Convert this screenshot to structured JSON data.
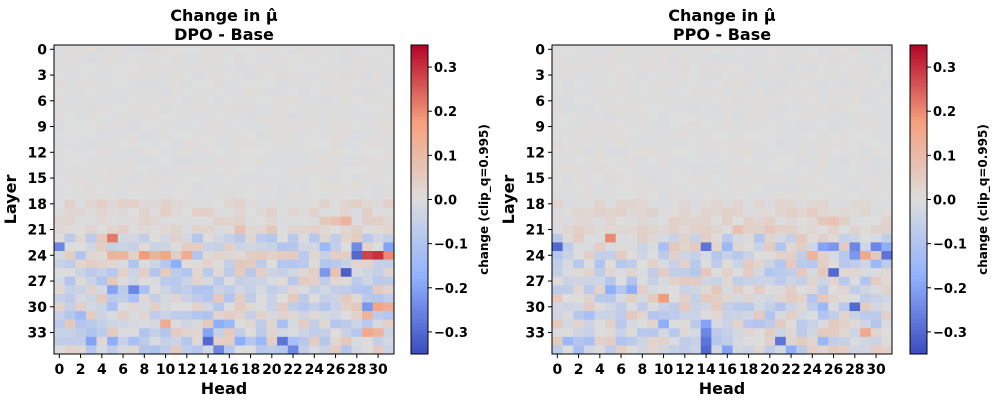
{
  "chart_data": [
    {
      "type": "heatmap",
      "title": "Change in μ̂",
      "subtitle": "DPO - Base",
      "xlabel": "Head",
      "ylabel": "Layer",
      "rows": 36,
      "cols": 32,
      "xticks": [
        "0",
        "2",
        "4",
        "6",
        "8",
        "10",
        "12",
        "14",
        "16",
        "18",
        "20",
        "22",
        "24",
        "26",
        "28",
        "30"
      ],
      "yticks": [
        "0",
        "3",
        "6",
        "9",
        "12",
        "15",
        "18",
        "21",
        "24",
        "27",
        "30",
        "33"
      ],
      "colorbar": {
        "label": "change (clip_q=0.995)",
        "ticks": [
          "0.3",
          "0.2",
          "0.1",
          "0.0",
          "−0.1",
          "−0.2",
          "−0.3"
        ],
        "range": [
          -0.35,
          0.35
        ],
        "cmap": "coolwarm"
      },
      "seed": 7,
      "cells": [
        [
          22,
          5,
          0.22
        ],
        [
          23,
          0,
          -0.25
        ],
        [
          24,
          5,
          0.12
        ],
        [
          24,
          6,
          0.12
        ],
        [
          24,
          8,
          0.18
        ],
        [
          24,
          9,
          0.12
        ],
        [
          24,
          10,
          0.16
        ],
        [
          24,
          12,
          0.14
        ],
        [
          24,
          28,
          -0.3
        ],
        [
          24,
          29,
          0.28
        ],
        [
          24,
          30,
          0.3
        ],
        [
          24,
          31,
          0.2
        ],
        [
          23,
          28,
          -0.24
        ],
        [
          23,
          31,
          -0.2
        ],
        [
          23,
          25,
          -0.15
        ],
        [
          25,
          11,
          -0.18
        ],
        [
          26,
          25,
          -0.22
        ],
        [
          26,
          27,
          -0.32
        ],
        [
          26,
          26,
          0.08
        ],
        [
          28,
          5,
          -0.2
        ],
        [
          28,
          7,
          -0.25
        ],
        [
          28,
          8,
          -0.12
        ],
        [
          28,
          11,
          -0.08
        ],
        [
          29,
          7,
          -0.12
        ],
        [
          30,
          5,
          -0.12
        ],
        [
          30,
          29,
          -0.22
        ],
        [
          30,
          30,
          0.16
        ],
        [
          30,
          31,
          0.14
        ],
        [
          31,
          2,
          -0.14
        ],
        [
          31,
          14,
          -0.1
        ],
        [
          31,
          29,
          0.12
        ],
        [
          32,
          10,
          0.14
        ],
        [
          32,
          15,
          -0.18
        ],
        [
          32,
          16,
          -0.15
        ],
        [
          32,
          21,
          -0.12
        ],
        [
          33,
          14,
          -0.2
        ],
        [
          33,
          29,
          0.15
        ],
        [
          33,
          30,
          0.12
        ],
        [
          34,
          3,
          -0.2
        ],
        [
          34,
          5,
          -0.18
        ],
        [
          34,
          7,
          -0.12
        ],
        [
          34,
          14,
          -0.3
        ],
        [
          34,
          17,
          -0.18
        ],
        [
          34,
          19,
          -0.15
        ],
        [
          34,
          21,
          -0.28
        ],
        [
          34,
          22,
          -0.12
        ],
        [
          35,
          15,
          -0.25
        ],
        [
          35,
          22,
          -0.25
        ],
        [
          35,
          9,
          -0.1
        ],
        [
          20,
          25,
          0.06
        ],
        [
          20,
          26,
          0.08
        ],
        [
          20,
          27,
          0.12
        ],
        [
          21,
          17,
          0.08
        ],
        [
          21,
          20,
          0.06
        ]
      ]
    },
    {
      "type": "heatmap",
      "title": "Change in μ̂",
      "subtitle": "PPO - Base",
      "xlabel": "Head",
      "ylabel": "Layer",
      "rows": 36,
      "cols": 32,
      "xticks": [
        "0",
        "2",
        "4",
        "6",
        "8",
        "10",
        "12",
        "14",
        "16",
        "18",
        "20",
        "22",
        "24",
        "26",
        "28",
        "30"
      ],
      "yticks": [
        "0",
        "3",
        "6",
        "9",
        "12",
        "15",
        "18",
        "21",
        "24",
        "27",
        "30",
        "33"
      ],
      "colorbar": {
        "label": "change (clip_q=0.995)",
        "ticks": [
          "0.3",
          "0.2",
          "0.1",
          "0.0",
          "−0.1",
          "−0.2",
          "−0.3"
        ],
        "range": [
          -0.35,
          0.35
        ],
        "cmap": "coolwarm"
      },
      "seed": 13,
      "cells": [
        [
          22,
          5,
          0.2
        ],
        [
          23,
          0,
          -0.3
        ],
        [
          23,
          10,
          -0.12
        ],
        [
          23,
          14,
          -0.28
        ],
        [
          23,
          16,
          -0.15
        ],
        [
          23,
          25,
          -0.2
        ],
        [
          23,
          26,
          -0.22
        ],
        [
          23,
          28,
          -0.25
        ],
        [
          23,
          30,
          -0.25
        ],
        [
          23,
          31,
          -0.18
        ],
        [
          24,
          28,
          -0.22
        ],
        [
          24,
          29,
          0.15
        ],
        [
          24,
          31,
          -0.28
        ],
        [
          24,
          24,
          0.12
        ],
        [
          26,
          26,
          -0.3
        ],
        [
          25,
          30,
          -0.15
        ],
        [
          29,
          10,
          0.18
        ],
        [
          28,
          5,
          -0.18
        ],
        [
          28,
          7,
          -0.18
        ],
        [
          30,
          28,
          -0.3
        ],
        [
          30,
          25,
          -0.15
        ],
        [
          31,
          3,
          -0.12
        ],
        [
          32,
          10,
          -0.18
        ],
        [
          32,
          14,
          -0.2
        ],
        [
          33,
          14,
          -0.25
        ],
        [
          33,
          29,
          0.15
        ],
        [
          34,
          14,
          -0.28
        ],
        [
          34,
          21,
          -0.28
        ],
        [
          34,
          25,
          -0.15
        ],
        [
          35,
          14,
          -0.3
        ],
        [
          35,
          16,
          -0.2
        ],
        [
          35,
          22,
          -0.18
        ],
        [
          35,
          2,
          -0.12
        ],
        [
          34,
          1,
          -0.15
        ],
        [
          34,
          3,
          -0.12
        ],
        [
          20,
          25,
          0.06
        ],
        [
          20,
          26,
          0.08
        ],
        [
          21,
          17,
          0.08
        ],
        [
          21,
          20,
          0.06
        ],
        [
          19,
          24,
          0.05
        ]
      ]
    }
  ]
}
